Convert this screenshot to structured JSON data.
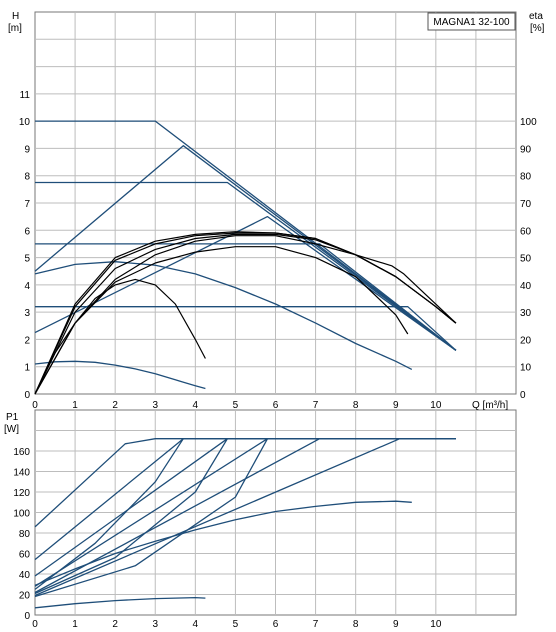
{
  "chart_data": [
    {
      "type": "line",
      "title": "MAGNA1 32-100",
      "xlabel": "Q [m³/h]",
      "ylabel_left_line1": "H",
      "ylabel_left_line2": "[m]",
      "ylabel_right_line1": "eta",
      "ylabel_right_line2": "[%]",
      "xlim": [
        0,
        12
      ],
      "ylim": [
        0,
        14
      ],
      "ylim_right": [
        0,
        140
      ],
      "x_ticks": [
        0,
        1,
        2,
        3,
        4,
        5,
        6,
        7,
        8,
        9,
        10
      ],
      "y_ticks": [
        0,
        1,
        2,
        3,
        4,
        5,
        6,
        7,
        8,
        9,
        10,
        11
      ],
      "y_right_ticks": [
        0,
        10,
        20,
        30,
        40,
        50,
        60,
        70,
        80,
        90,
        100
      ],
      "grid": true,
      "colors": {
        "pump": "#1f4e79",
        "efficiency": "#000000"
      },
      "head_series": [
        {
          "x": [
            0,
            3,
            10.5
          ],
          "y": [
            10,
            10,
            1.6
          ]
        },
        {
          "x": [
            0,
            4.8,
            10.5
          ],
          "y": [
            7.75,
            7.75,
            1.6
          ]
        },
        {
          "x": [
            0,
            7.1,
            10.5
          ],
          "y": [
            5.5,
            5.5,
            1.6
          ]
        },
        {
          "x": [
            0,
            9.3,
            10.5
          ],
          "y": [
            3.2,
            3.2,
            1.6
          ]
        },
        {
          "x": [
            0,
            3.7,
            10.5
          ],
          "y": [
            4.5,
            9.1,
            1.6
          ]
        },
        {
          "x": [
            0,
            5.8,
            10.5
          ],
          "y": [
            2.25,
            6.5,
            1.6
          ]
        },
        {
          "x": [
            0,
            0.5,
            1,
            1.5,
            2,
            2.5,
            3,
            3.5,
            4,
            4.25
          ],
          "y": [
            1.1,
            1.18,
            1.2,
            1.16,
            1.06,
            0.92,
            0.74,
            0.52,
            0.3,
            0.2
          ]
        },
        {
          "x": [
            0,
            1,
            2,
            3,
            4,
            5,
            6,
            7,
            8,
            9,
            9.4
          ],
          "y": [
            4.4,
            4.75,
            4.85,
            4.72,
            4.4,
            3.9,
            3.3,
            2.6,
            1.85,
            1.2,
            0.9
          ]
        }
      ],
      "efficiency_series": [
        {
          "x": [
            0,
            0.5,
            1,
            1.5,
            2,
            2.5,
            3,
            3.5,
            4,
            4.25
          ],
          "y": [
            0,
            15,
            26,
            35,
            40,
            42,
            40,
            33,
            20,
            13
          ]
        },
        {
          "x": [
            0,
            1,
            2,
            3,
            4,
            5,
            6,
            7,
            8,
            9,
            9.3
          ],
          "y": [
            0,
            26,
            41,
            48,
            52,
            54,
            54,
            50,
            43,
            29,
            22
          ]
        },
        {
          "x": [
            0,
            1,
            2,
            3,
            4,
            5,
            6,
            7,
            8,
            8.9,
            9.2,
            10.5
          ],
          "y": [
            0,
            26,
            42,
            51,
            56,
            58,
            58,
            55,
            51,
            47,
            44,
            26
          ]
        },
        {
          "x": [
            0,
            1,
            2,
            3,
            4,
            5,
            6,
            7,
            8,
            9,
            10,
            10.5
          ],
          "y": [
            0,
            30,
            46,
            53,
            57,
            58.5,
            58.5,
            56.5,
            51,
            43,
            32,
            26
          ]
        },
        {
          "x": [
            0,
            1,
            2,
            3,
            4,
            5,
            6,
            7,
            8,
            9,
            10,
            10.5
          ],
          "y": [
            0,
            32,
            49,
            55,
            58,
            59,
            59,
            57,
            51,
            43,
            32,
            26
          ]
        },
        {
          "x": [
            0,
            1,
            2,
            3,
            4,
            5,
            6,
            7,
            8,
            9,
            10,
            10.5
          ],
          "y": [
            0,
            33,
            50,
            56,
            58.5,
            59.5,
            59,
            57,
            51,
            43,
            32,
            26
          ]
        }
      ]
    },
    {
      "type": "line",
      "ylabel_line1": "P1",
      "ylabel_line2": "[W]",
      "xlim": [
        0,
        12
      ],
      "ylim": [
        0,
        200
      ],
      "x_ticks": [
        0,
        1,
        2,
        3,
        4,
        5,
        6,
        7,
        8,
        9,
        10
      ],
      "y_ticks": [
        0,
        20,
        40,
        60,
        80,
        100,
        120,
        140,
        160
      ],
      "grid": true,
      "colors": {
        "pump": "#1f4e79"
      },
      "series": [
        {
          "x": [
            0,
            2.25,
            3,
            10.5
          ],
          "y": [
            86,
            167,
            172,
            172
          ]
        },
        {
          "x": [
            0,
            3.7,
            10.5
          ],
          "y": [
            54,
            172,
            172
          ]
        },
        {
          "x": [
            0,
            4.8,
            10.5
          ],
          "y": [
            38,
            172,
            172
          ]
        },
        {
          "x": [
            0,
            5.8,
            10.5
          ],
          "y": [
            28,
            172,
            172
          ]
        },
        {
          "x": [
            0,
            7.1,
            10.5
          ],
          "y": [
            22,
            172,
            172
          ]
        },
        {
          "x": [
            0,
            9.1,
            10.5
          ],
          "y": [
            19,
            172,
            172
          ]
        },
        {
          "x": [
            0,
            1.5,
            3,
            3.7
          ],
          "y": [
            25,
            70,
            130,
            172
          ]
        },
        {
          "x": [
            0,
            2,
            4,
            4.8
          ],
          "y": [
            21,
            56,
            120,
            172
          ]
        },
        {
          "x": [
            0,
            2.5,
            5,
            5.8
          ],
          "y": [
            18,
            48,
            115,
            172
          ]
        },
        {
          "x": [
            0,
            1,
            2,
            3,
            4,
            5,
            6,
            7,
            8,
            9,
            9.4
          ],
          "y": [
            29,
            45,
            60,
            72,
            83,
            93,
            101,
            106,
            110,
            111,
            110
          ]
        },
        {
          "x": [
            0,
            1,
            2,
            3,
            4,
            4.25
          ],
          "y": [
            7,
            11,
            14,
            16,
            17,
            16.5
          ]
        }
      ]
    }
  ]
}
